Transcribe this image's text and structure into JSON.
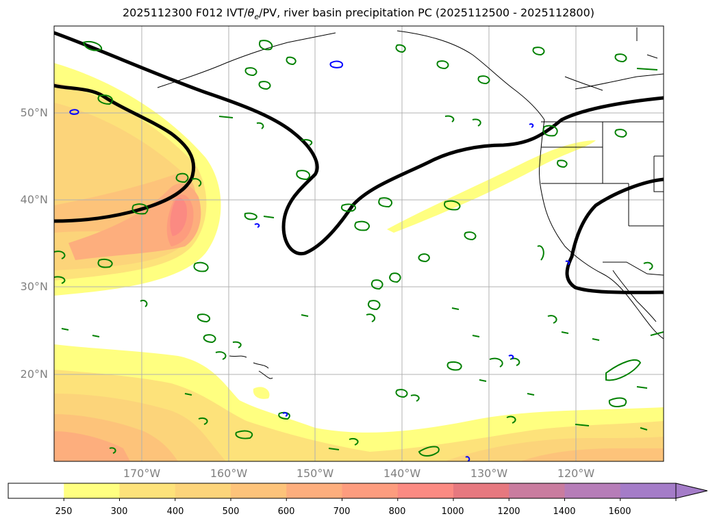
{
  "title": "2025112300 F012 IVT/θe/PV, river basin precipitation PC (2025112500 - 2025112800)",
  "title_parts": {
    "prefix": "2025112300 F012 IVT/",
    "theta": "θ",
    "sub": "e",
    "suffix": "/PV, river basin precipitation PC (2025112500 - 2025112800)"
  },
  "lat_labels": [
    "50°N",
    "40°N",
    "30°N",
    "20°N"
  ],
  "lon_labels": [
    "170°W",
    "160°W",
    "150°W",
    "140°W",
    "130°W",
    "120°W"
  ],
  "colorbar": {
    "levels": [
      "250",
      "300",
      "400",
      "500",
      "600",
      "700",
      "800",
      "1000",
      "1200",
      "1400",
      "1600"
    ],
    "colors": [
      "#ffffff",
      "#ffff80",
      "#fde27a",
      "#fcd47a",
      "#fdc37a",
      "#fdae7d",
      "#fd9c7e",
      "#fb8a82",
      "#e6787f",
      "#c97c9f",
      "#b67db8",
      "#a47cc8"
    ],
    "extend": "max"
  },
  "colors": {
    "pv_contour": "#000000",
    "theta_e_contour": "#008000",
    "negative_contour": "#0000ff",
    "coastline": "#000000",
    "gridline": "#b0b0b0"
  }
}
